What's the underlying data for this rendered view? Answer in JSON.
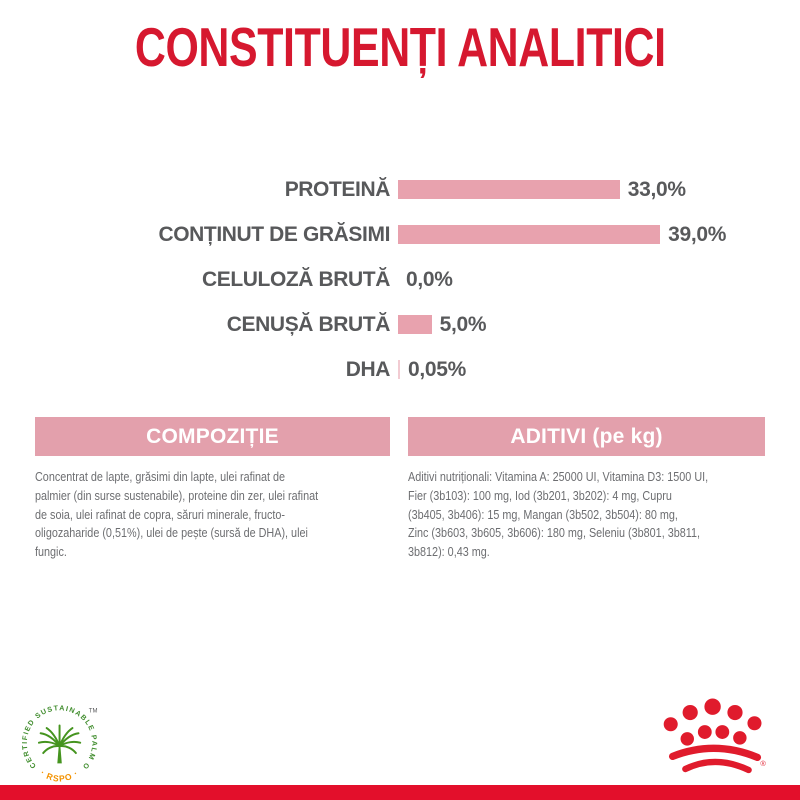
{
  "title": "CONSTITUENȚI ANALITICI",
  "colors": {
    "title_red": "#D6182F",
    "bottom_bar_red": "#E30F2B",
    "crown_red": "#E01B2C",
    "header_pink": "#E3A0AC",
    "bar_pink": "#E8A2AE",
    "small_bar_pink": "#F2CBD2",
    "label_gray": "#58595B",
    "body_gray": "#6D6E71",
    "rspo_green": "#45941F",
    "rspo_orange": "#F39200"
  },
  "chart_data": {
    "type": "bar",
    "orientation": "horizontal",
    "title": "CONSTITUENȚI ANALITICI",
    "categories": [
      "PROTEINĂ",
      "CONȚINUT DE GRĂSIMI",
      "CELULOZĂ BRUTĂ",
      "CENUȘĂ BRUTĂ",
      "DHA"
    ],
    "values": [
      33.0,
      39.0,
      0.0,
      5.0,
      0.05
    ],
    "value_labels": [
      "33,0%",
      "39,0%",
      "0,0%",
      "5,0%",
      "0,05%"
    ],
    "unit": "%",
    "xlim": [
      0,
      45
    ],
    "grid": false,
    "legend": false,
    "bar_color": "#E8A2AE",
    "small_bar_color": "#F2CBD2"
  },
  "sections": [
    {
      "header": "COMPOZIȚIE",
      "body_lines": [
        "Concentrat de lapte, grăsimi din lapte, ulei rafinat de",
        "palmier (din surse sustenabile), proteine din zer, ulei rafinat",
        "de soia, ulei rafinat de copra, săruri minerale, fructo-",
        "oligozaharide (0,51%), ulei de pește (sursă de DHA), ulei",
        "fungic."
      ]
    },
    {
      "header": "ADITIVI (pe kg)",
      "body_lines": [
        "Aditivi nutriționali: Vitamina A: 25000 UI, Vitamina D3: 1500 UI,",
        "Fier (3b103): 100 mg, Iod (3b201, 3b202): 4 mg, Cupru",
        "(3b405, 3b406): 15 mg, Mangan (3b502, 3b504): 80 mg,",
        "Zinc (3b603, 3b605, 3b606): 180 mg, Seleniu (3b801, 3b811,",
        "3b812): 0,43 mg."
      ]
    }
  ],
  "footer": {
    "rspo": {
      "arc_text": "CERTIFIED SUSTAINABLE PALM OIL",
      "label": "· RSPO ·",
      "tm": "TM"
    },
    "brand": {
      "registered": "®"
    }
  }
}
